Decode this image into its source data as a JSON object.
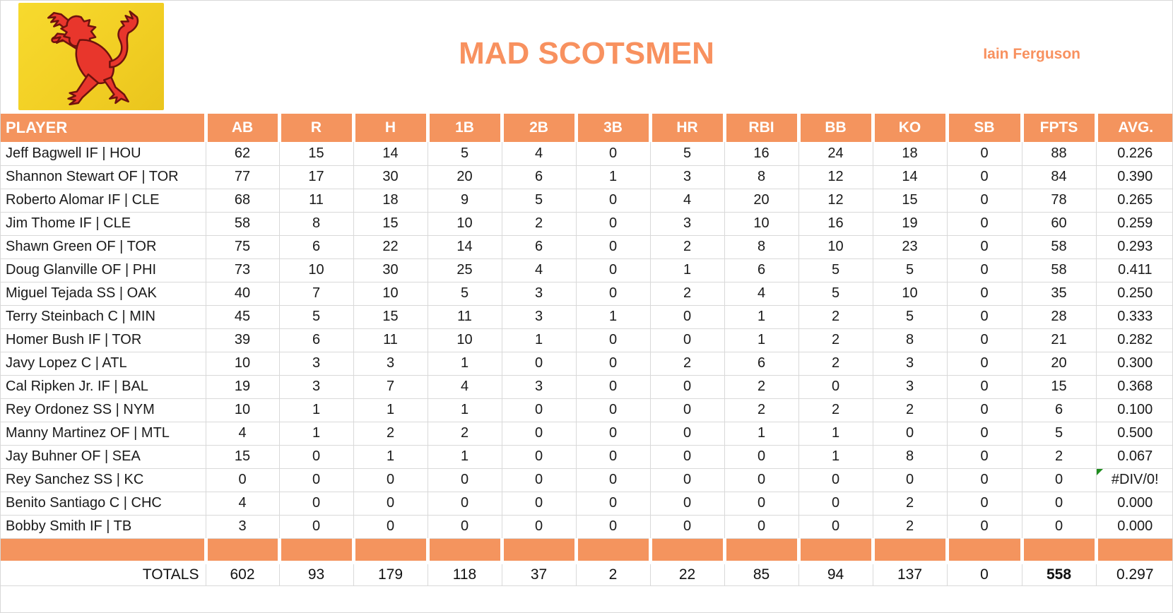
{
  "header": {
    "team_name": "MAD SCOTSMEN",
    "owner": "Iain Ferguson",
    "flag": "scotland-lion-rampant"
  },
  "colors": {
    "accent_orange": "#F4945E",
    "title_orange": "#F8915F",
    "gridline": "#D9D9D9",
    "flag_yellow": "#F2CF24",
    "lion_red": "#E8362C",
    "error_green": "#1E8C1E"
  },
  "table": {
    "columns": [
      "PLAYER",
      "AB",
      "R",
      "H",
      "1B",
      "2B",
      "3B",
      "HR",
      "RBI",
      "BB",
      "KO",
      "SB",
      "FPTS",
      "AVG."
    ],
    "rows": [
      {
        "player": "Jeff Bagwell IF | HOU",
        "stats": [
          62,
          15,
          14,
          5,
          4,
          0,
          5,
          16,
          24,
          18,
          0,
          88,
          "0.226"
        ]
      },
      {
        "player": "Shannon Stewart OF | TOR",
        "stats": [
          77,
          17,
          30,
          20,
          6,
          1,
          3,
          8,
          12,
          14,
          0,
          84,
          "0.390"
        ]
      },
      {
        "player": "Roberto Alomar IF | CLE",
        "stats": [
          68,
          11,
          18,
          9,
          5,
          0,
          4,
          20,
          12,
          15,
          0,
          78,
          "0.265"
        ]
      },
      {
        "player": "Jim Thome IF | CLE",
        "stats": [
          58,
          8,
          15,
          10,
          2,
          0,
          3,
          10,
          16,
          19,
          0,
          60,
          "0.259"
        ]
      },
      {
        "player": "Shawn Green OF | TOR",
        "stats": [
          75,
          6,
          22,
          14,
          6,
          0,
          2,
          8,
          10,
          23,
          0,
          58,
          "0.293"
        ]
      },
      {
        "player": "Doug Glanville OF | PHI",
        "stats": [
          73,
          10,
          30,
          25,
          4,
          0,
          1,
          6,
          5,
          5,
          0,
          58,
          "0.411"
        ]
      },
      {
        "player": "Miguel Tejada SS | OAK",
        "stats": [
          40,
          7,
          10,
          5,
          3,
          0,
          2,
          4,
          5,
          10,
          0,
          35,
          "0.250"
        ]
      },
      {
        "player": "Terry Steinbach C | MIN",
        "stats": [
          45,
          5,
          15,
          11,
          3,
          1,
          0,
          1,
          2,
          5,
          0,
          28,
          "0.333"
        ]
      },
      {
        "player": "Homer Bush IF | TOR",
        "stats": [
          39,
          6,
          11,
          10,
          1,
          0,
          0,
          1,
          2,
          8,
          0,
          21,
          "0.282"
        ]
      },
      {
        "player": "Javy Lopez C | ATL",
        "stats": [
          10,
          3,
          3,
          1,
          0,
          0,
          2,
          6,
          2,
          3,
          0,
          20,
          "0.300"
        ]
      },
      {
        "player": "Cal Ripken Jr. IF | BAL",
        "stats": [
          19,
          3,
          7,
          4,
          3,
          0,
          0,
          2,
          0,
          3,
          0,
          15,
          "0.368"
        ]
      },
      {
        "player": "Rey Ordonez SS | NYM",
        "stats": [
          10,
          1,
          1,
          1,
          0,
          0,
          0,
          2,
          2,
          2,
          0,
          6,
          "0.100"
        ]
      },
      {
        "player": "Manny Martinez OF | MTL",
        "stats": [
          4,
          1,
          2,
          2,
          0,
          0,
          0,
          1,
          1,
          0,
          0,
          5,
          "0.500"
        ]
      },
      {
        "player": "Jay Buhner OF | SEA",
        "stats": [
          15,
          0,
          1,
          1,
          0,
          0,
          0,
          0,
          1,
          8,
          0,
          2,
          "0.067"
        ]
      },
      {
        "player": "Rey Sanchez SS | KC",
        "stats": [
          0,
          0,
          0,
          0,
          0,
          0,
          0,
          0,
          0,
          0,
          0,
          0,
          "#DIV/0!"
        ]
      },
      {
        "player": "Benito Santiago C | CHC",
        "stats": [
          4,
          0,
          0,
          0,
          0,
          0,
          0,
          0,
          0,
          2,
          0,
          0,
          "0.000"
        ]
      },
      {
        "player": "Bobby Smith IF | TB",
        "stats": [
          3,
          0,
          0,
          0,
          0,
          0,
          0,
          0,
          0,
          2,
          0,
          0,
          "0.000"
        ]
      }
    ],
    "totals": {
      "label": "TOTALS",
      "values": [
        602,
        93,
        179,
        118,
        37,
        2,
        22,
        85,
        94,
        137,
        0,
        558,
        "0.297"
      ]
    }
  }
}
